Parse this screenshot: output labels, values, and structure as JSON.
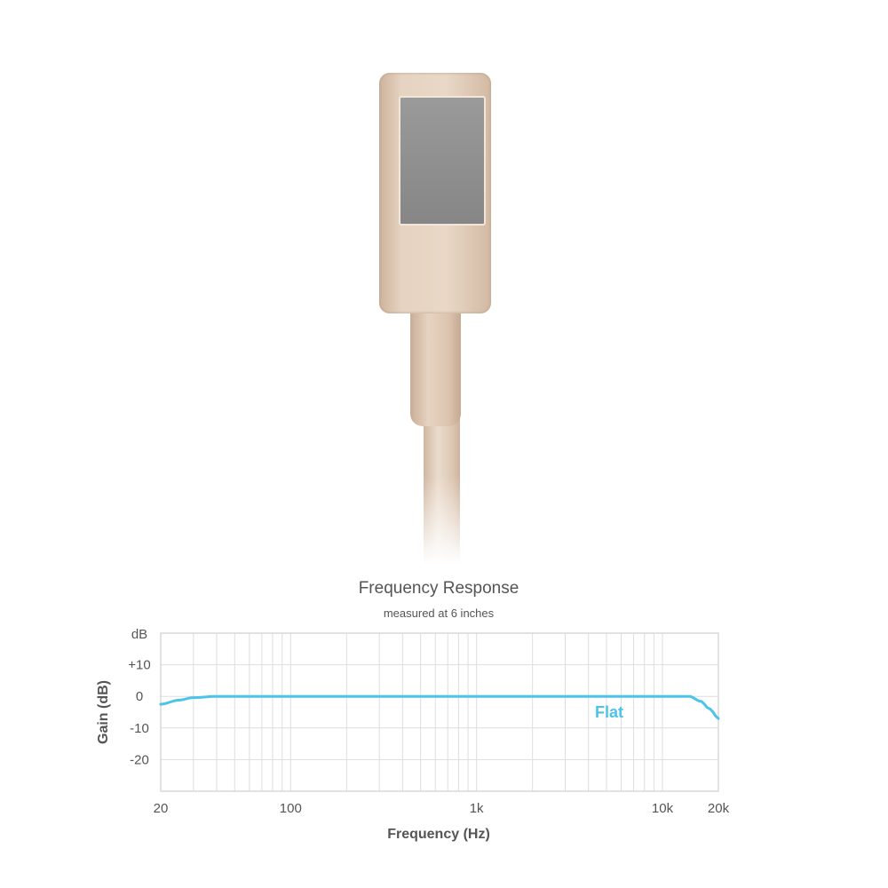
{
  "chart_data": {
    "type": "line",
    "title": "Frequency Response",
    "subtitle": "measured at 6 inches",
    "xlabel": "Frequency (Hz)",
    "ylabel": "Gain (dB)",
    "y_unit_label": "dB",
    "x_scale": "log",
    "xlim": [
      20,
      20000
    ],
    "ylim": [
      -30,
      20
    ],
    "grid": true,
    "x_ticks": [
      {
        "value": 20,
        "label": "20"
      },
      {
        "value": 100,
        "label": "100"
      },
      {
        "value": 1000,
        "label": "1k"
      },
      {
        "value": 10000,
        "label": "10k"
      },
      {
        "value": 20000,
        "label": "20k"
      }
    ],
    "y_ticks": [
      {
        "value": 10,
        "label": "+10"
      },
      {
        "value": 0,
        "label": "0"
      },
      {
        "value": -10,
        "label": "-10"
      },
      {
        "value": -20,
        "label": "-20"
      }
    ],
    "series": [
      {
        "name": "Flat",
        "color": "#4cc3ea",
        "x": [
          20,
          25,
          30,
          40,
          60,
          100,
          1000,
          5000,
          10000,
          14000,
          16000,
          18000,
          20000
        ],
        "y": [
          -2.5,
          -1.2,
          -0.4,
          0,
          0,
          0,
          0,
          0,
          0,
          0,
          -1.5,
          -4,
          -7
        ]
      }
    ]
  }
}
